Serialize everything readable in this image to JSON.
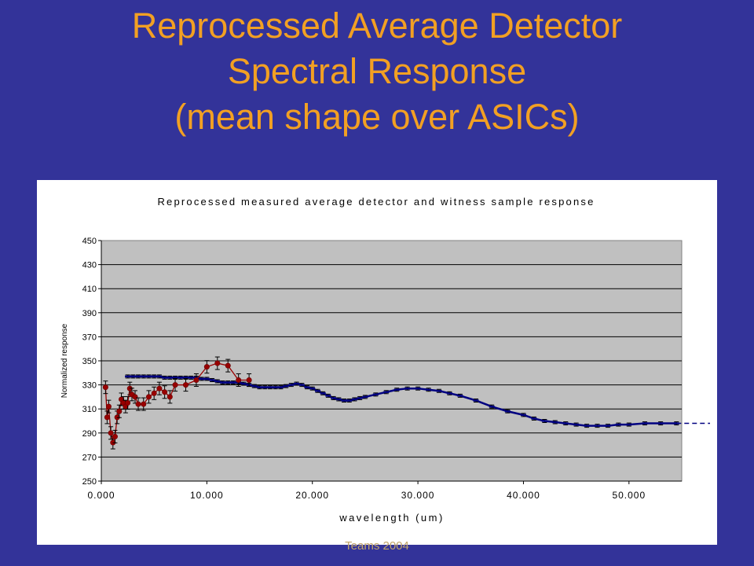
{
  "slide": {
    "title_lines": [
      "Reprocessed Average Detector",
      "Spectral Response",
      "(mean shape over ASICs)"
    ],
    "footer": "Teams 2004"
  },
  "colors": {
    "background": "#333399",
    "title": "#f2a023",
    "plot_area": "#c0c0c0",
    "series_detector": "#000080",
    "series_witness": "#990000"
  },
  "chart_data": {
    "type": "scatter",
    "title": "Reprocessed measured average detector and witness sample response",
    "xlabel": "wavelength (um)",
    "ylabel": "Normalized response",
    "xlim": [
      0,
      55
    ],
    "ylim": [
      250,
      450
    ],
    "x_ticks": [
      "0.000",
      "10.000",
      "20.000",
      "30.000",
      "40.000",
      "50.000"
    ],
    "y_ticks": [
      "250",
      "270",
      "290",
      "310",
      "330",
      "350",
      "370",
      "390",
      "410",
      "430",
      "450"
    ],
    "grid": "horizontal",
    "legend": "none",
    "series": [
      {
        "color": "#000080",
        "marker": "dash",
        "error_bars": true,
        "x": [
          2.5,
          3.0,
          3.5,
          4.0,
          4.5,
          5.0,
          5.5,
          6.0,
          6.5,
          7.0,
          7.5,
          8.0,
          8.5,
          9.0,
          9.5,
          10.0,
          10.5,
          11.0,
          11.5,
          12.0,
          12.5,
          13.0,
          13.5,
          14.0,
          14.5,
          15.0,
          15.5,
          16.0,
          16.5,
          17.0,
          17.5,
          18.0,
          18.5,
          19.0,
          19.5,
          20.0,
          20.5,
          21.0,
          21.5,
          22.0,
          22.5,
          23.0,
          23.5,
          24.0,
          24.5,
          25.0,
          26.0,
          27.0,
          28.0,
          29.0,
          30.0,
          31.0,
          32.0,
          33.0,
          34.0,
          35.5,
          37.0,
          38.5,
          40.0,
          41.0,
          42.0,
          43.0,
          44.0,
          45.0,
          46.0,
          47.0,
          48.0,
          49.0,
          50.0,
          51.5,
          53.0,
          54.5
        ],
        "y": [
          337,
          337,
          337,
          337,
          337,
          337,
          337,
          336,
          336,
          336,
          336,
          336,
          336,
          336,
          335,
          335,
          334,
          333,
          332,
          332,
          332,
          332,
          331,
          330,
          329,
          328,
          328,
          328,
          328,
          328,
          329,
          330,
          331,
          330,
          328,
          327,
          325,
          323,
          321,
          319,
          318,
          317,
          317,
          318,
          319,
          320,
          322,
          324,
          326,
          327,
          327,
          326,
          325,
          323,
          321,
          317,
          312,
          308,
          305,
          302,
          300,
          299,
          298,
          297,
          296,
          296,
          296,
          297,
          297,
          298,
          298,
          298
        ]
      },
      {
        "color": "#990000",
        "marker": "circle",
        "error_bars": true,
        "x": [
          0.4,
          0.55,
          0.7,
          0.9,
          1.1,
          1.3,
          1.5,
          1.7,
          1.9,
          2.1,
          2.3,
          2.5,
          2.7,
          2.9,
          3.2,
          3.5,
          4.0,
          4.5,
          5.0,
          5.5,
          6.0,
          6.5,
          7.0,
          8.0,
          9.0,
          10.0,
          11.0,
          12.0,
          13.0,
          14.0
        ],
        "y": [
          328,
          303,
          312,
          290,
          282,
          287,
          303,
          308,
          318,
          315,
          312,
          315,
          327,
          322,
          320,
          314,
          314,
          320,
          323,
          327,
          324,
          320,
          330,
          330,
          334,
          345,
          348,
          346,
          334,
          334
        ]
      }
    ]
  }
}
